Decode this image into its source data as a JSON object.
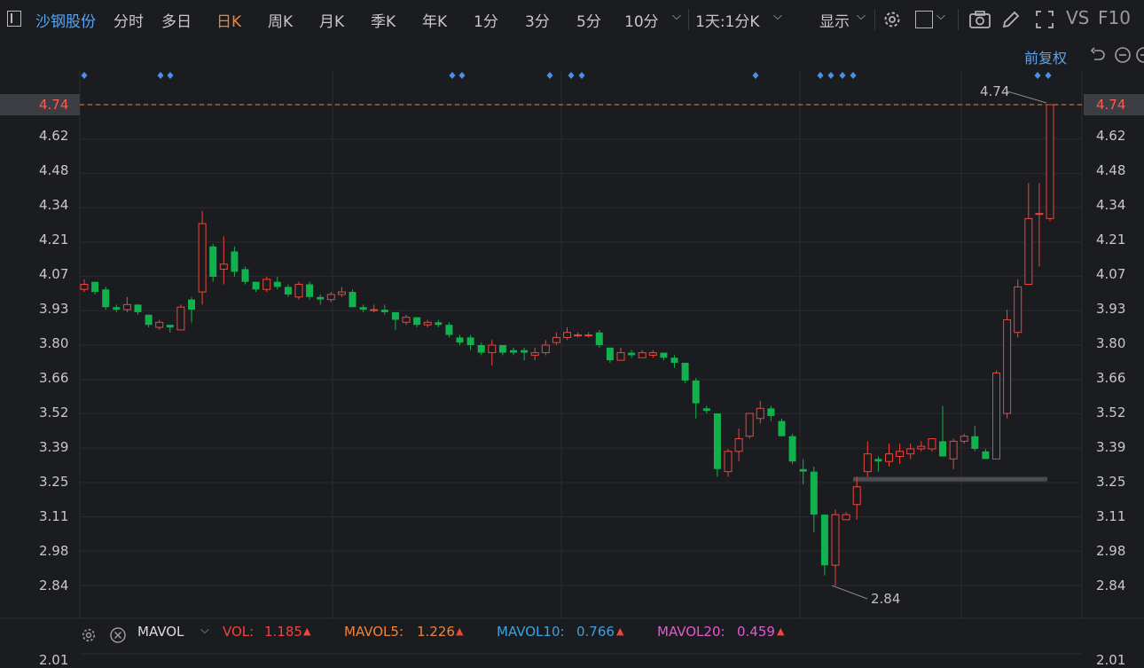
{
  "toolbar": {
    "stock_name": "沙钢股份",
    "tabs": [
      "分时",
      "多日",
      "日K",
      "周K",
      "月K",
      "季K",
      "年K",
      "1分",
      "3分",
      "5分",
      "10分"
    ],
    "active_tab": "日K",
    "period_select": "1天:1分K",
    "display": "显示",
    "vs": "VS",
    "f10": "F10"
  },
  "sub_header": {
    "adjust": "前复权"
  },
  "price_axis": {
    "ticks": [
      "4.74",
      "4.62",
      "4.48",
      "4.34",
      "4.21",
      "4.07",
      "3.93",
      "3.80",
      "3.66",
      "3.52",
      "3.39",
      "3.25",
      "3.11",
      "2.98",
      "2.84"
    ],
    "current_price": "4.74",
    "bottom_tick": "2.01"
  },
  "annotations": {
    "high_label": "4.74",
    "low_label": "2.84"
  },
  "colors": {
    "up": "#f0443b",
    "down": "#11b24e",
    "bg": "#1b1c1f",
    "grid": "#2a2b2f",
    "accent": "#f0833a",
    "link": "#5aa3f0",
    "marker": "#4a8fe8"
  },
  "chart_data": {
    "type": "candlestick",
    "ylim": [
      2.84,
      4.74
    ],
    "candles": [
      {
        "o": 4.01,
        "c": 4.03,
        "h": 4.05,
        "l": 4.0
      },
      {
        "o": 4.04,
        "c": 4.0,
        "h": 4.04,
        "l": 3.99
      },
      {
        "o": 4.01,
        "c": 3.94,
        "h": 4.02,
        "l": 3.93
      },
      {
        "o": 3.94,
        "c": 3.93,
        "h": 3.95,
        "l": 3.92
      },
      {
        "o": 3.93,
        "c": 3.95,
        "h": 3.98,
        "l": 3.92
      },
      {
        "o": 3.95,
        "c": 3.92,
        "h": 3.95,
        "l": 3.91
      },
      {
        "o": 3.91,
        "c": 3.87,
        "h": 3.91,
        "l": 3.86
      },
      {
        "o": 3.86,
        "c": 3.88,
        "h": 3.89,
        "l": 3.85
      },
      {
        "o": 3.87,
        "c": 3.86,
        "h": 3.87,
        "l": 3.84
      },
      {
        "o": 3.85,
        "c": 3.94,
        "h": 3.95,
        "l": 3.85
      },
      {
        "o": 3.97,
        "c": 3.93,
        "h": 3.98,
        "l": 3.88
      },
      {
        "o": 4.0,
        "c": 4.27,
        "h": 4.32,
        "l": 3.95
      },
      {
        "o": 4.18,
        "c": 4.06,
        "h": 4.19,
        "l": 4.04
      },
      {
        "o": 4.09,
        "c": 4.11,
        "h": 4.22,
        "l": 4.03
      },
      {
        "o": 4.16,
        "c": 4.08,
        "h": 4.18,
        "l": 4.06
      },
      {
        "o": 4.09,
        "c": 4.04,
        "h": 4.1,
        "l": 4.03
      },
      {
        "o": 4.04,
        "c": 4.01,
        "h": 4.04,
        "l": 4.0
      },
      {
        "o": 4.01,
        "c": 4.05,
        "h": 4.06,
        "l": 4.0
      },
      {
        "o": 4.04,
        "c": 4.02,
        "h": 4.06,
        "l": 4.01
      },
      {
        "o": 4.02,
        "c": 3.99,
        "h": 4.03,
        "l": 3.98
      },
      {
        "o": 3.98,
        "c": 4.03,
        "h": 4.04,
        "l": 3.97
      },
      {
        "o": 4.03,
        "c": 3.98,
        "h": 4.04,
        "l": 3.97
      },
      {
        "o": 3.98,
        "c": 3.97,
        "h": 3.99,
        "l": 3.95
      },
      {
        "o": 3.97,
        "c": 3.99,
        "h": 4.0,
        "l": 3.96
      },
      {
        "o": 3.99,
        "c": 4.0,
        "h": 4.02,
        "l": 3.98
      },
      {
        "o": 4.0,
        "c": 3.94,
        "h": 4.01,
        "l": 3.94
      },
      {
        "o": 3.94,
        "c": 3.93,
        "h": 3.95,
        "l": 3.92
      },
      {
        "o": 3.93,
        "c": 3.93,
        "h": 3.95,
        "l": 3.92
      },
      {
        "o": 3.93,
        "c": 3.92,
        "h": 3.95,
        "l": 3.91
      },
      {
        "o": 3.92,
        "c": 3.89,
        "h": 3.92,
        "l": 3.85
      },
      {
        "o": 3.88,
        "c": 3.9,
        "h": 3.91,
        "l": 3.87
      },
      {
        "o": 3.9,
        "c": 3.87,
        "h": 3.9,
        "l": 3.86
      },
      {
        "o": 3.87,
        "c": 3.88,
        "h": 3.89,
        "l": 3.86
      },
      {
        "o": 3.88,
        "c": 3.87,
        "h": 3.89,
        "l": 3.86
      },
      {
        "o": 3.87,
        "c": 3.83,
        "h": 3.88,
        "l": 3.82
      },
      {
        "o": 3.82,
        "c": 3.8,
        "h": 3.83,
        "l": 3.79
      },
      {
        "o": 3.82,
        "c": 3.79,
        "h": 3.83,
        "l": 3.77
      },
      {
        "o": 3.79,
        "c": 3.76,
        "h": 3.8,
        "l": 3.75
      },
      {
        "o": 3.76,
        "c": 3.79,
        "h": 3.81,
        "l": 3.71
      },
      {
        "o": 3.79,
        "c": 3.76,
        "h": 3.79,
        "l": 3.75
      },
      {
        "o": 3.77,
        "c": 3.76,
        "h": 3.78,
        "l": 3.75
      },
      {
        "o": 3.77,
        "c": 3.76,
        "h": 3.78,
        "l": 3.73
      },
      {
        "o": 3.75,
        "c": 3.76,
        "h": 3.78,
        "l": 3.73
      },
      {
        "o": 3.76,
        "c": 3.79,
        "h": 3.81,
        "l": 3.75
      },
      {
        "o": 3.8,
        "c": 3.82,
        "h": 3.84,
        "l": 3.79
      },
      {
        "o": 3.82,
        "c": 3.84,
        "h": 3.86,
        "l": 3.81
      },
      {
        "o": 3.83,
        "c": 3.83,
        "h": 3.84,
        "l": 3.82
      },
      {
        "o": 3.83,
        "c": 3.83,
        "h": 3.84,
        "l": 3.82
      },
      {
        "o": 3.84,
        "c": 3.79,
        "h": 3.85,
        "l": 3.78
      },
      {
        "o": 3.78,
        "c": 3.73,
        "h": 3.78,
        "l": 3.72
      },
      {
        "o": 3.73,
        "c": 3.76,
        "h": 3.78,
        "l": 3.73
      },
      {
        "o": 3.76,
        "c": 3.75,
        "h": 3.77,
        "l": 3.74
      },
      {
        "o": 3.74,
        "c": 3.76,
        "h": 3.77,
        "l": 3.74
      },
      {
        "o": 3.75,
        "c": 3.76,
        "h": 3.77,
        "l": 3.74
      },
      {
        "o": 3.76,
        "c": 3.74,
        "h": 3.76,
        "l": 3.73
      },
      {
        "o": 3.74,
        "c": 3.72,
        "h": 3.75,
        "l": 3.7
      },
      {
        "o": 3.72,
        "c": 3.65,
        "h": 3.72,
        "l": 3.64
      },
      {
        "o": 3.65,
        "c": 3.56,
        "h": 3.66,
        "l": 3.5
      },
      {
        "o": 3.54,
        "c": 3.53,
        "h": 3.55,
        "l": 3.52
      },
      {
        "o": 3.52,
        "c": 3.3,
        "h": 3.52,
        "l": 3.27
      },
      {
        "o": 3.29,
        "c": 3.37,
        "h": 3.38,
        "l": 3.27
      },
      {
        "o": 3.37,
        "c": 3.42,
        "h": 3.46,
        "l": 3.33
      },
      {
        "o": 3.43,
        "c": 3.52,
        "h": 3.52,
        "l": 3.42
      },
      {
        "o": 3.5,
        "c": 3.54,
        "h": 3.57,
        "l": 3.48
      },
      {
        "o": 3.54,
        "c": 3.51,
        "h": 3.55,
        "l": 3.49
      },
      {
        "o": 3.49,
        "c": 3.43,
        "h": 3.5,
        "l": 3.43
      },
      {
        "o": 3.43,
        "c": 3.33,
        "h": 3.44,
        "l": 3.32
      },
      {
        "o": 3.3,
        "c": 3.29,
        "h": 3.34,
        "l": 3.24
      },
      {
        "o": 3.29,
        "c": 3.12,
        "h": 3.31,
        "l": 3.05
      },
      {
        "o": 3.12,
        "c": 2.92,
        "h": 3.12,
        "l": 2.88
      },
      {
        "o": 2.92,
        "c": 3.12,
        "h": 3.14,
        "l": 2.84
      },
      {
        "o": 3.1,
        "c": 3.12,
        "h": 3.13,
        "l": 3.1
      },
      {
        "o": 3.16,
        "c": 3.23,
        "h": 3.27,
        "l": 3.1
      },
      {
        "o": 3.29,
        "c": 3.36,
        "h": 3.41,
        "l": 3.27
      },
      {
        "o": 3.34,
        "c": 3.33,
        "h": 3.35,
        "l": 3.29
      },
      {
        "o": 3.33,
        "c": 3.36,
        "h": 3.4,
        "l": 3.31
      },
      {
        "o": 3.35,
        "c": 3.37,
        "h": 3.4,
        "l": 3.32
      },
      {
        "o": 3.36,
        "c": 3.38,
        "h": 3.4,
        "l": 3.34
      },
      {
        "o": 3.38,
        "c": 3.39,
        "h": 3.41,
        "l": 3.37
      },
      {
        "o": 3.38,
        "c": 3.42,
        "h": 3.42,
        "l": 3.37
      },
      {
        "o": 3.41,
        "c": 3.35,
        "h": 3.55,
        "l": 3.35
      },
      {
        "o": 3.34,
        "c": 3.41,
        "h": 3.42,
        "l": 3.3
      },
      {
        "o": 3.41,
        "c": 3.43,
        "h": 3.44,
        "l": 3.4
      },
      {
        "o": 3.43,
        "c": 3.38,
        "h": 3.47,
        "l": 3.37
      },
      {
        "o": 3.37,
        "c": 3.34,
        "h": 3.38,
        "l": 3.34
      },
      {
        "o": 3.34,
        "c": 3.68,
        "h": 3.69,
        "l": 3.34
      },
      {
        "o": 3.52,
        "c": 3.89,
        "h": 3.93,
        "l": 3.5
      },
      {
        "o": 3.84,
        "c": 4.02,
        "h": 4.05,
        "l": 3.82
      },
      {
        "o": 4.03,
        "c": 4.29,
        "h": 4.43,
        "l": 4.03
      },
      {
        "o": 4.31,
        "c": 4.31,
        "h": 4.43,
        "l": 4.1
      },
      {
        "o": 4.29,
        "c": 4.74,
        "h": 4.74,
        "l": 4.28
      }
    ],
    "gap_band": {
      "y": 3.26
    },
    "event_markers": [
      1,
      3,
      4,
      17,
      18,
      22,
      23,
      24,
      32,
      36,
      37,
      38,
      39,
      43,
      44
    ]
  },
  "volume_indicator": {
    "name": "MAVOL",
    "vol_label": "VOL:",
    "vol": "1.185",
    "mavol5_label": "MAVOL5:",
    "mavol5": "1.226",
    "mavol10_label": "MAVOL10:",
    "mavol10": "0.766",
    "mavol20_label": "MAVOL20:",
    "mavol20": "0.459"
  }
}
